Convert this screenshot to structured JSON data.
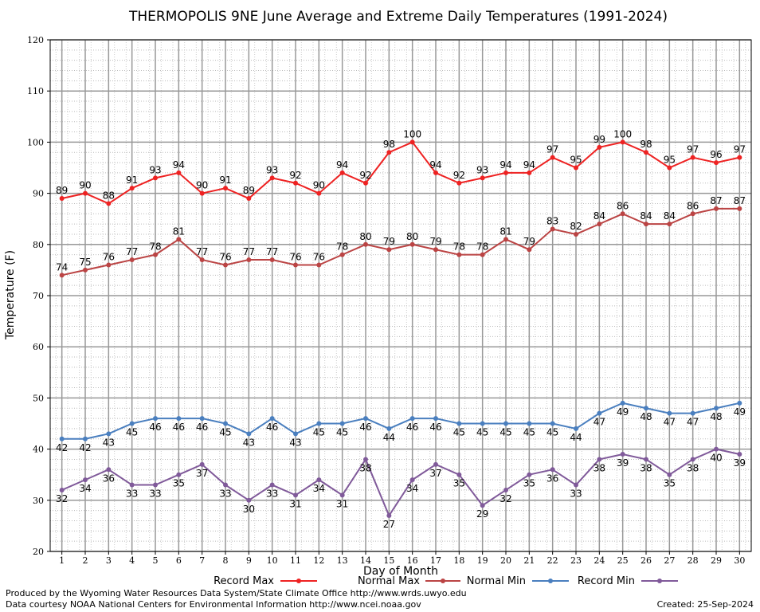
{
  "chart_data": {
    "type": "line",
    "title": "THERMOPOLIS 9NE June Average and Extreme Daily Temperatures (1991-2024)",
    "xlabel": "Day of Month",
    "ylabel": "Temperature (F)",
    "xlim": [
      1,
      30
    ],
    "ylim": [
      20,
      120
    ],
    "y_ticks": [
      20,
      30,
      40,
      50,
      60,
      70,
      80,
      90,
      100,
      110,
      120
    ],
    "x": [
      1,
      2,
      3,
      4,
      5,
      6,
      7,
      8,
      9,
      10,
      11,
      12,
      13,
      14,
      15,
      16,
      17,
      18,
      19,
      20,
      21,
      22,
      23,
      24,
      25,
      26,
      27,
      28,
      29,
      30
    ],
    "grid": true,
    "legend_position": "bottom",
    "series": [
      {
        "name": "Record Max",
        "color": "#ee2222",
        "values": [
          89,
          90,
          88,
          91,
          93,
          94,
          90,
          91,
          89,
          93,
          92,
          90,
          94,
          92,
          98,
          100,
          94,
          92,
          93,
          94,
          94,
          97,
          95,
          99,
          100,
          98,
          95,
          97,
          96,
          97
        ]
      },
      {
        "name": "Normal Max",
        "color": "#bb4444",
        "values": [
          74,
          75,
          76,
          77,
          78,
          81,
          77,
          76,
          77,
          77,
          76,
          76,
          78,
          80,
          79,
          80,
          79,
          78,
          78,
          81,
          79,
          83,
          82,
          84,
          86,
          84,
          84,
          86,
          87,
          87
        ]
      },
      {
        "name": "Normal Min",
        "color": "#4a7fbf",
        "values": [
          42,
          42,
          43,
          45,
          46,
          46,
          46,
          45,
          43,
          46,
          43,
          45,
          45,
          46,
          44,
          46,
          46,
          45,
          45,
          45,
          45,
          45,
          44,
          47,
          49,
          48,
          47,
          47,
          48,
          49
        ]
      },
      {
        "name": "Record Min",
        "color": "#805a9a",
        "values": [
          32,
          34,
          36,
          33,
          33,
          35,
          37,
          33,
          30,
          33,
          31,
          34,
          31,
          38,
          27,
          34,
          37,
          35,
          29,
          32,
          35,
          36,
          33,
          38,
          39,
          38,
          35,
          38,
          40,
          39
        ]
      }
    ]
  },
  "footer": {
    "produced_by": "Produced by the Wyoming Water Resources Data System/State Climate Office http://www.wrds.uwyo.edu",
    "courtesy": "Data courtesy NOAA National Centers for Environmental Information http://www.ncei.noaa.gov",
    "created": "Created:  25-Sep-2024"
  }
}
